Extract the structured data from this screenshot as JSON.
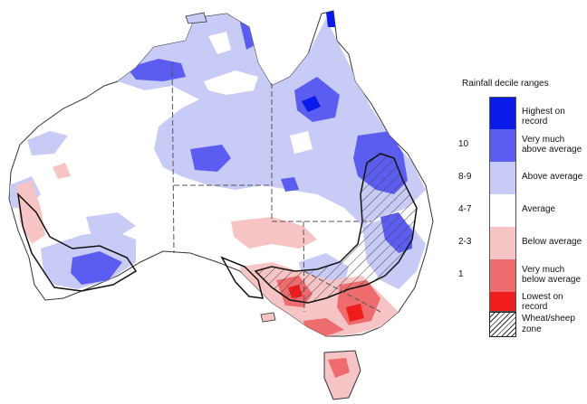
{
  "legend": {
    "title": "Rainfall decile ranges",
    "items": [
      {
        "decile": "",
        "label": "Highest on record",
        "color": "#0a1ae8"
      },
      {
        "decile": "10",
        "label": "Very much above average",
        "color": "#5b5df0"
      },
      {
        "decile": "8-9",
        "label": "Above average",
        "color": "#c9cbf7"
      },
      {
        "decile": "4-7",
        "label": "Average",
        "color": "#ffffff"
      },
      {
        "decile": "2-3",
        "label": "Below average",
        "color": "#f7c4c6"
      },
      {
        "decile": "1",
        "label": "Very much below average",
        "color": "#ee6c6e"
      },
      {
        "decile": "",
        "label": "Lowest on record",
        "color": "#ee1c1c"
      }
    ],
    "wheat_sheep_label": "Wheat/sheep zone"
  },
  "colors": {
    "land_default": "#ffffff",
    "coast": "#333333",
    "state_border": "#555555",
    "zone_border": "#111111"
  }
}
